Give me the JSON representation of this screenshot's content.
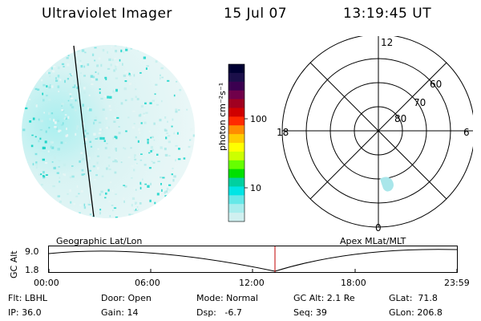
{
  "header": {
    "title": "Ultraviolet Imager",
    "date": "15 Jul 07",
    "time": "13:19:45 UT"
  },
  "colorbar": {
    "unit_label": "photon cm⁻²s⁻¹",
    "ticks": [
      "100",
      "10"
    ],
    "colors": [
      "#000033",
      "#1b0f4a",
      "#3b0050",
      "#70004a",
      "#a00020",
      "#d00000",
      "#ff2a00",
      "#ff8c00",
      "#ffcc00",
      "#ffff00",
      "#ccff00",
      "#66ff00",
      "#00e000",
      "#00d0a0",
      "#00e5e5",
      "#66e8e8",
      "#a8eded",
      "#d0f0f0"
    ]
  },
  "polar_plot": {
    "mlt_labels": [
      "12",
      "18",
      "6",
      "0"
    ],
    "lat_labels": [
      "60",
      "70",
      "80"
    ]
  },
  "timeline": {
    "axis_name": "GC Alt",
    "y_ticks": [
      "9.0",
      "1.8"
    ],
    "left_label": "Geographic Lat/Lon",
    "right_label": "Apex MLat/MLT",
    "x_ticks": [
      "00:00",
      "06:00",
      "12:00",
      "18:00",
      "23:59"
    ],
    "current_marker_color": "#c00000"
  },
  "info": {
    "flt": "Flt: LBHL",
    "ip": "IP: 36.0",
    "door": "Door: Open",
    "gain": "Gain: 14",
    "mode": "Mode: Normal",
    "dsp": "Dsp:   -6.7",
    "gc_alt": "GC Alt: 2.1 Re",
    "seq": "Seq: 39",
    "glat": "GLat:  71.8",
    "glon": "GLon: 206.8"
  }
}
